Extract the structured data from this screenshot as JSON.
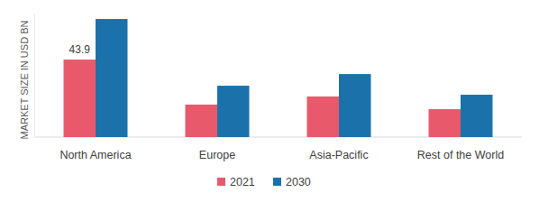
{
  "chart_data": {
    "type": "bar",
    "y_label": "MARKET SIZE IN USD BN",
    "categories": [
      "North America",
      "Europe",
      "Asia-Pacific",
      "Rest of the World"
    ],
    "series": [
      {
        "name": "2021",
        "color": "#e85a6b",
        "values": [
          43.9,
          18.4,
          23.0,
          15.8
        ],
        "value_labels": [
          "43.9",
          null,
          null,
          null
        ]
      },
      {
        "name": "2030",
        "color": "#1b72aa",
        "values": [
          66.9,
          29.1,
          35.7,
          24.0
        ],
        "value_labels": [
          null,
          null,
          null,
          null
        ]
      }
    ],
    "ylim": [
      0,
      70
    ],
    "grid": false,
    "data_labels": true,
    "tick_labels": "x",
    "legend": "bottom"
  }
}
